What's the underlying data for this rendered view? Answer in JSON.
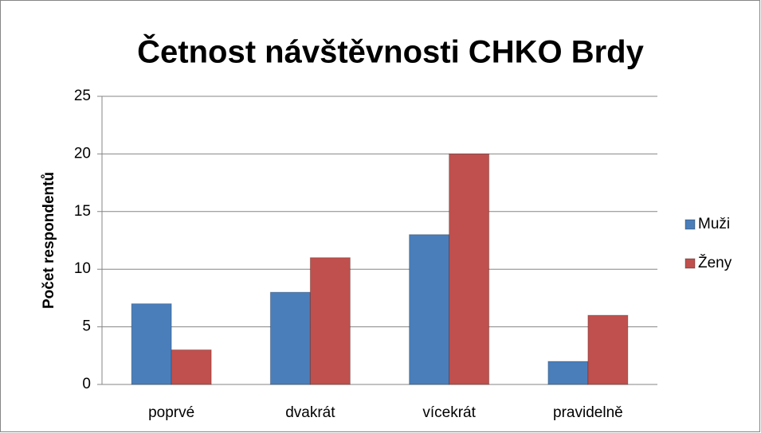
{
  "chart_data": {
    "type": "bar",
    "title": "Četnost návštěvnosti CHKO Brdy",
    "y_label": "Počet respondentů",
    "categories": [
      "poprvé",
      "dvakrát",
      "vícekrát",
      "pravidelně"
    ],
    "series": [
      {
        "name": "Muži",
        "color": "#4a7ebb",
        "values": [
          7,
          8,
          13,
          2
        ]
      },
      {
        "name": "Ženy",
        "color": "#c0504d",
        "values": [
          3,
          11,
          20,
          6
        ]
      }
    ],
    "ylim": [
      0,
      25
    ],
    "yticks": [
      0,
      5,
      10,
      15,
      20,
      25
    ],
    "grid": true,
    "legend": "right"
  }
}
